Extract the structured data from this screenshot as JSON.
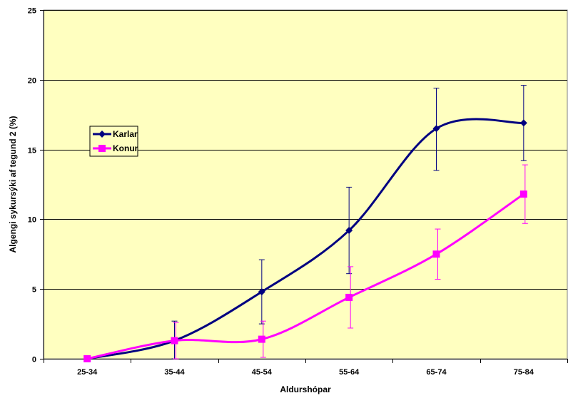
{
  "chart_data": {
    "type": "line",
    "title": "",
    "xlabel": "Aldurshópar",
    "ylabel": "Algengi sykursýki af tegund 2 (%)",
    "categories": [
      "25-34",
      "35-44",
      "45-54",
      "55-64",
      "65-74",
      "75-84"
    ],
    "ylim": [
      0,
      25
    ],
    "yticks": [
      0,
      5,
      10,
      15,
      20,
      25
    ],
    "grid": true,
    "legend_position": "left",
    "colors": {
      "plot_background": "#FFFFC0",
      "gridline": "#000000"
    },
    "series": [
      {
        "name": "Karlar",
        "color": "#000080",
        "marker": "diamond",
        "smooth": true,
        "values": [
          0,
          1.3,
          4.8,
          9.2,
          16.5,
          16.9
        ],
        "error_low": [
          0,
          0,
          2.5,
          6.1,
          13.5,
          14.2
        ],
        "error_high": [
          0,
          2.7,
          7.1,
          12.3,
          19.4,
          19.6
        ]
      },
      {
        "name": "Konur",
        "color": "#FF00FF",
        "marker": "square",
        "smooth": true,
        "values": [
          0,
          1.3,
          1.4,
          4.4,
          7.5,
          11.8
        ],
        "error_low": [
          0,
          0,
          0.1,
          2.2,
          5.7,
          9.7
        ],
        "error_high": [
          0,
          2.6,
          2.7,
          6.6,
          9.3,
          13.9
        ]
      }
    ]
  }
}
